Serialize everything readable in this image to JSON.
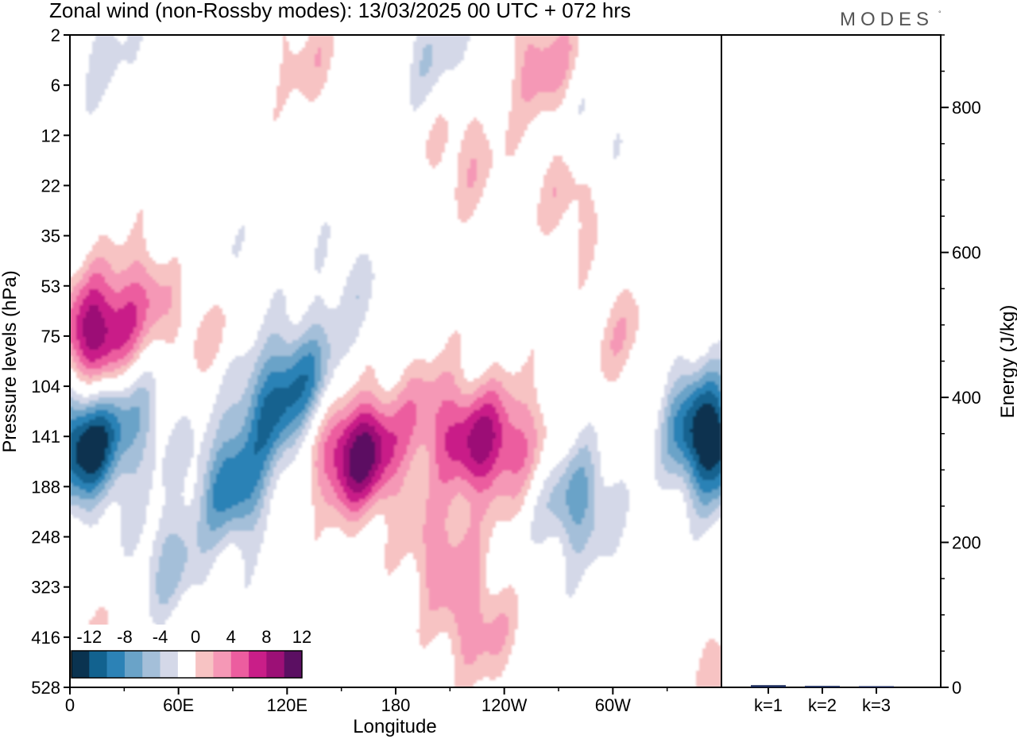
{
  "chart_data": [
    {
      "type": "heatmap",
      "title": "Zonal wind (non-Rossby modes):  13/03/2025  00 UTC  + 072 hrs",
      "logo": "MODES",
      "xlabel": "Longitude",
      "ylabel": "Pressure levels (hPa)",
      "x_ticks": [
        "0",
        "60E",
        "120E",
        "180",
        "120W",
        "60W"
      ],
      "x_tick_degrees": [
        0,
        60,
        120,
        180,
        240,
        300
      ],
      "xlim": [
        0,
        360
      ],
      "y_ticks": [
        "2",
        "6",
        "12",
        "22",
        "35",
        "53",
        "75",
        "104",
        "141",
        "188",
        "248",
        "323",
        "416",
        "528"
      ],
      "y_scale": "level-index",
      "colorbar": {
        "labels": [
          "-12",
          "-8",
          "-4",
          "0",
          "4",
          "8",
          "12"
        ],
        "levels": [
          -14,
          -12,
          -10,
          -8,
          -6,
          -4,
          -2,
          2,
          4,
          6,
          8,
          10,
          12,
          14
        ],
        "colors": [
          "#0a3350",
          "#12628f",
          "#2c82b6",
          "#6aa3c8",
          "#a4bfd9",
          "#d4d8e8",
          "#ffffff",
          "#f7c3c3",
          "#f598b6",
          "#ec5d9f",
          "#c91e88",
          "#9c1076",
          "#5b0f62"
        ]
      },
      "features": [
        {
          "lon": 8,
          "level": 8.2,
          "value": -13.5
        },
        {
          "lon": 35,
          "level": 7.6,
          "value": -5
        },
        {
          "lon": 55,
          "level": 10.5,
          "value": -4.5
        },
        {
          "lon": 90,
          "level": 9.0,
          "value": -9
        },
        {
          "lon": 110,
          "level": 7.5,
          "value": -8
        },
        {
          "lon": 130,
          "level": 6.8,
          "value": -7
        },
        {
          "lon": 155,
          "level": 5.0,
          "value": -2.5
        },
        {
          "lon": 75,
          "level": 4.6,
          "value": -2.5
        },
        {
          "lon": 20,
          "level": 0.4,
          "value": -2.5
        },
        {
          "lon": 200,
          "level": 0.3,
          "value": -3.5
        },
        {
          "lon": 285,
          "level": 1.8,
          "value": -2.5
        },
        {
          "lon": 280,
          "level": 9.3,
          "value": -7
        },
        {
          "lon": 355,
          "level": 8.2,
          "value": -12
        },
        {
          "lon": 345,
          "level": 7.5,
          "value": -5
        },
        {
          "lon": 14,
          "level": 6.0,
          "value": 11.5
        },
        {
          "lon": 40,
          "level": 5.2,
          "value": 5
        },
        {
          "lon": 75,
          "level": 5.7,
          "value": 3
        },
        {
          "lon": 130,
          "level": 0.4,
          "value": 3
        },
        {
          "lon": 218,
          "level": 2.4,
          "value": 3.5
        },
        {
          "lon": 262,
          "level": 0.6,
          "value": 5.5
        },
        {
          "lon": 277,
          "level": 3.2,
          "value": 3.5
        },
        {
          "lon": 165,
          "level": 8.3,
          "value": 9
        },
        {
          "lon": 150,
          "level": 8.4,
          "value": 6.5
        },
        {
          "lon": 200,
          "level": 7.6,
          "value": 5
        },
        {
          "lon": 205,
          "level": 10.3,
          "value": 5
        },
        {
          "lon": 227,
          "level": 8.2,
          "value": 9
        },
        {
          "lon": 250,
          "level": 8.0,
          "value": 4
        },
        {
          "lon": 225,
          "level": 11.8,
          "value": 5
        },
        {
          "lon": 5,
          "level": 12.5,
          "value": 3
        },
        {
          "lon": 305,
          "level": 6.0,
          "value": 3
        },
        {
          "lon": 358,
          "level": 12.6,
          "value": 2.5
        }
      ]
    },
    {
      "type": "bar",
      "ylabel": "Energy (J/kg)",
      "categories": [
        "k=1",
        "k=2",
        "k=3"
      ],
      "values": [
        3,
        2,
        1
      ],
      "ylim": [
        0,
        900
      ],
      "y_ticks": [
        0,
        200,
        400,
        600,
        800
      ],
      "bar_color": "#1a2a5a"
    }
  ]
}
